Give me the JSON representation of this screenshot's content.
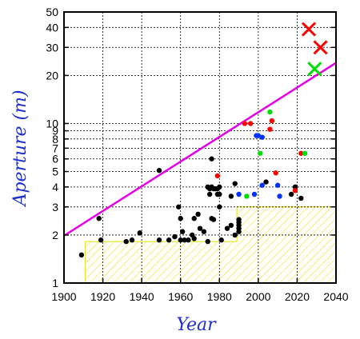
{
  "chart_data": {
    "type": "scatter",
    "title": "",
    "xlabel": "Year",
    "ylabel": "Aperture (m)",
    "xlim": [
      1900,
      2040
    ],
    "ylim": [
      1,
      50
    ],
    "y_scale": "log",
    "grid": true,
    "x_ticks": [
      1900,
      1920,
      1940,
      1960,
      1980,
      2000,
      2020,
      2040
    ],
    "y_ticks": [
      1,
      2,
      3,
      4,
      5,
      6,
      7,
      8,
      9,
      10,
      20,
      30,
      40,
      50
    ],
    "colors": {
      "black": "#000000",
      "red": "#ff0000",
      "green": "#00dd00",
      "blue": "#0033ff",
      "magenta": "#e600e6",
      "hatch": "#e8e000",
      "axis_title": "#1f2fd0"
    },
    "trend_line": {
      "from": [
        1900,
        1.98
      ],
      "to": [
        2040,
        24.0
      ],
      "color": "magenta"
    },
    "shaded_region": [
      [
        1911,
        1
      ],
      [
        1911,
        1.82
      ],
      [
        1989,
        1.82
      ],
      [
        1989,
        3.0
      ],
      [
        2040,
        3.0
      ],
      [
        2040,
        1
      ]
    ],
    "series": [
      {
        "marker": "dot",
        "color": "black",
        "points": [
          [
            1909,
            1.5
          ],
          [
            1918,
            2.54
          ],
          [
            1919,
            1.86
          ],
          [
            1932,
            1.82
          ],
          [
            1935,
            1.86
          ],
          [
            1939,
            2.06
          ],
          [
            1949,
            5.08
          ],
          [
            1949,
            1.86
          ],
          [
            1954,
            1.86
          ],
          [
            1957,
            1.95
          ],
          [
            1959,
            3.0
          ],
          [
            1960,
            1.86
          ],
          [
            1960,
            2.54
          ],
          [
            1961,
            2.1
          ],
          [
            1962,
            1.86
          ],
          [
            1964,
            1.86
          ],
          [
            1966,
            2.0
          ],
          [
            1967,
            2.54
          ],
          [
            1967,
            1.9
          ],
          [
            1969,
            2.7
          ],
          [
            1970,
            2.2
          ],
          [
            1972,
            2.1
          ],
          [
            1974,
            1.82
          ],
          [
            1974,
            4.0
          ],
          [
            1975,
            3.9
          ],
          [
            1975,
            3.6
          ],
          [
            1976,
            6.0
          ],
          [
            1976,
            2.54
          ],
          [
            1976,
            4.0
          ],
          [
            1977,
            2.5
          ],
          [
            1977,
            3.9
          ],
          [
            1978,
            3.9
          ],
          [
            1979,
            3.6
          ],
          [
            1979,
            3.9
          ],
          [
            1980,
            3.0
          ],
          [
            1980,
            3.6
          ],
          [
            1980,
            4.0
          ],
          [
            1981,
            1.86
          ],
          [
            1984,
            2.2
          ],
          [
            1986,
            2.3
          ],
          [
            1988,
            2.0
          ],
          [
            1988,
            4.2
          ],
          [
            1986,
            3.5
          ],
          [
            1990,
            2.3
          ],
          [
            1990,
            2.1
          ],
          [
            1990,
            2.4
          ],
          [
            1990,
            2.5
          ],
          [
            1990,
            2.2
          ],
          [
            2004,
            4.3
          ],
          [
            2017,
            3.6
          ],
          [
            2019,
            4.0
          ],
          [
            2022,
            3.4
          ]
        ]
      },
      {
        "marker": "dot",
        "color": "red",
        "points": [
          [
            1979,
            4.7
          ],
          [
            1993,
            10.0
          ],
          [
            1996,
            10.0
          ],
          [
            2007,
            10.4
          ],
          [
            2006,
            9.2
          ],
          [
            2009,
            4.9
          ],
          [
            2022,
            6.5
          ],
          [
            2019,
            3.8
          ]
        ]
      },
      {
        "marker": "dot",
        "color": "green",
        "points": [
          [
            2006,
            11.8
          ],
          [
            1994,
            3.5
          ],
          [
            2001,
            6.5
          ],
          [
            2024,
            6.5
          ]
        ]
      },
      {
        "marker": "dot",
        "color": "blue",
        "points": [
          [
            2000,
            8.4
          ],
          [
            1999,
            8.4
          ],
          [
            2002,
            8.2
          ],
          [
            2002,
            4.1
          ],
          [
            2010,
            4.1
          ],
          [
            2011,
            3.5
          ],
          [
            1990,
            3.6
          ],
          [
            1998,
            3.6
          ]
        ]
      },
      {
        "marker": "x",
        "color": "red",
        "points": [
          [
            2026,
            39
          ],
          [
            2032,
            30
          ]
        ]
      },
      {
        "marker": "x",
        "color": "green",
        "points": [
          [
            2029,
            22
          ]
        ]
      }
    ]
  }
}
